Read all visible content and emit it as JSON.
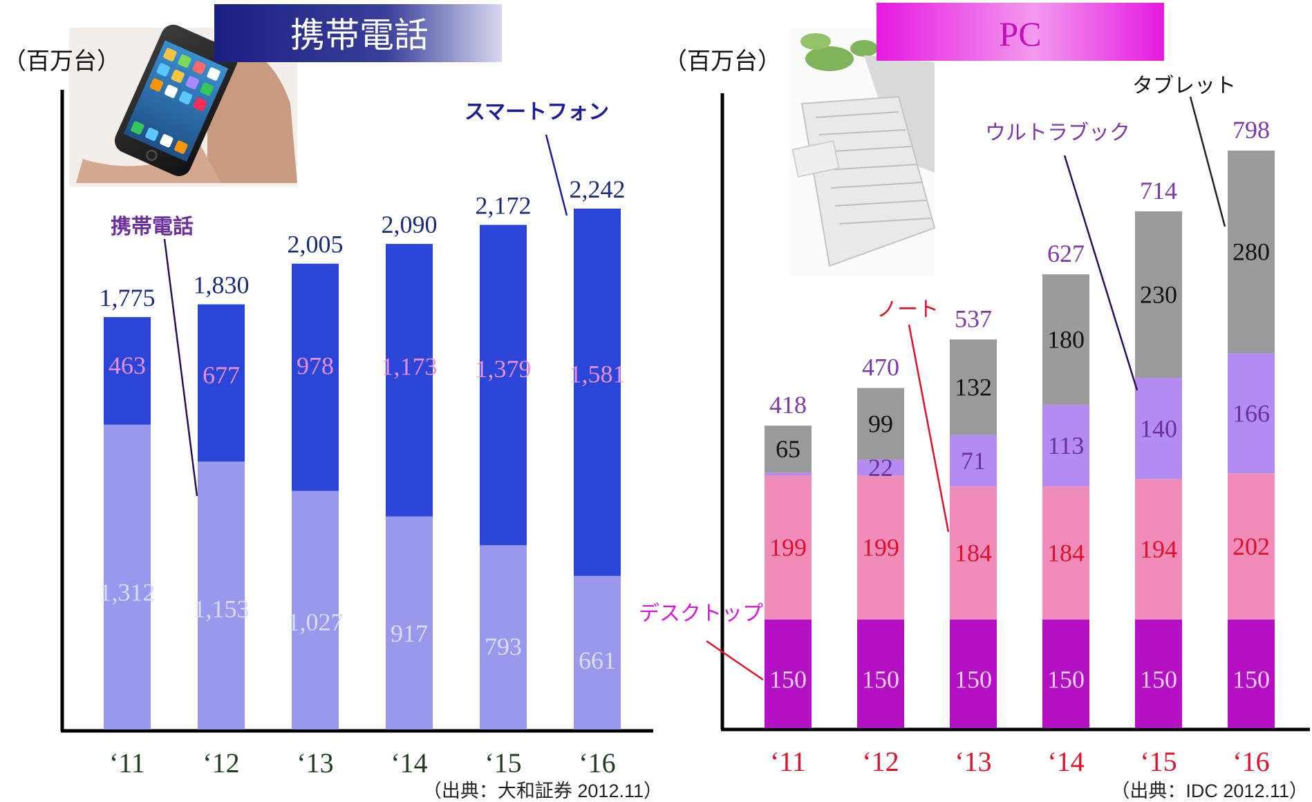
{
  "left": {
    "banner_title": "携帯電話",
    "unit_label": "（百万台）",
    "source": "（出典：大和証券 2012.11）",
    "colors": {
      "banner": "#1c1f82",
      "top": "#2a45d8",
      "bottom": "#9a98ec",
      "total_label": "#1a2a7a",
      "top_label": "#e98fe3",
      "bottom_label": "#d8dcff",
      "axis_label": "#1f3d1f"
    }
  },
  "right": {
    "banner_title": "PC",
    "unit_label": "（百万台）",
    "source": "（出典：IDC 2012.11）",
    "colors": {
      "banner": "#e619e0",
      "desktop": "#b30fc3",
      "note": "#f08cba",
      "ultrabook": "#b48bef",
      "tablet": "#9a9a9a",
      "total_label": "#7a3aa8",
      "axis_label": "#e0102a"
    }
  },
  "chart_data": [
    {
      "type": "bar",
      "stacked": true,
      "title": "携帯電話",
      "ylabel": "（百万台）",
      "categories": [
        "‘11",
        "‘12",
        "‘13",
        "‘14",
        "‘15",
        "‘16"
      ],
      "series": [
        {
          "name": "携帯電話",
          "values": [
            1312,
            1153,
            1027,
            917,
            793,
            661
          ]
        },
        {
          "name": "スマートフォン",
          "values": [
            463,
            677,
            978,
            1173,
            1379,
            1581
          ]
        }
      ],
      "totals": [
        "1,775",
        "1,830",
        "2,005",
        "2,090",
        "2,172",
        "2,242"
      ],
      "value_labels": {
        "携帯電話": [
          "1,312",
          "1,153",
          "1,027",
          "917",
          "793",
          "661"
        ],
        "スマートフォン": [
          "463",
          "677",
          "978",
          "1,173",
          "1,379",
          "1,581"
        ]
      },
      "ylim": [
        0,
        2242
      ]
    },
    {
      "type": "bar",
      "stacked": true,
      "title": "PC",
      "ylabel": "（百万台）",
      "categories": [
        "‘11",
        "‘12",
        "‘13",
        "‘14",
        "‘15",
        "‘16"
      ],
      "series": [
        {
          "name": "デスクトップ",
          "values": [
            150,
            150,
            150,
            150,
            150,
            150
          ]
        },
        {
          "name": "ノート",
          "values": [
            199,
            199,
            184,
            184,
            194,
            202
          ]
        },
        {
          "name": "ウルトラブック",
          "values": [
            4,
            22,
            71,
            113,
            140,
            166
          ]
        },
        {
          "name": "タブレット",
          "values": [
            65,
            99,
            132,
            180,
            230,
            280
          ]
        }
      ],
      "totals": [
        "418",
        "470",
        "537",
        "627",
        "714",
        "798"
      ],
      "value_labels": {
        "デスクトップ": [
          "150",
          "150",
          "150",
          "150",
          "150",
          "150"
        ],
        "ノート": [
          "199",
          "199",
          "184",
          "184",
          "194",
          "202"
        ],
        "ウルトラブック": [
          "",
          "22",
          "71",
          "113",
          "140",
          "166"
        ],
        "タブレット": [
          "65",
          "99",
          "132",
          "180",
          "230",
          "280"
        ]
      },
      "ylim": [
        0,
        798
      ]
    }
  ]
}
